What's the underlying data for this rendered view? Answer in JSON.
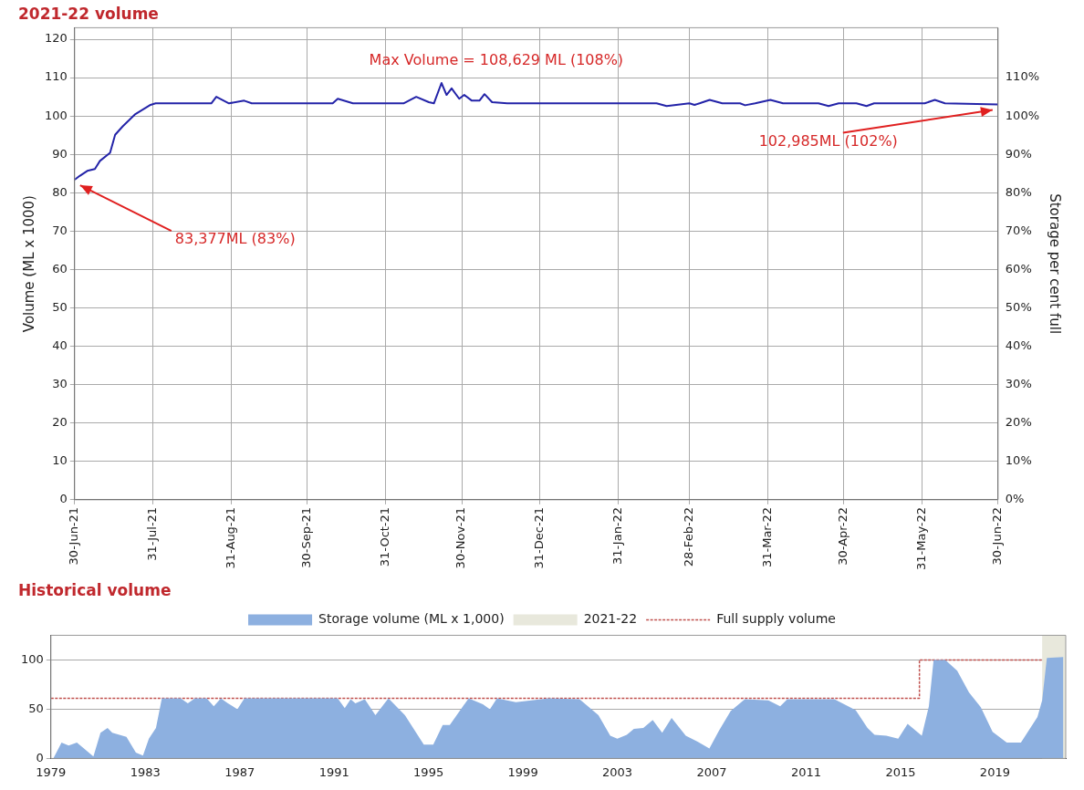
{
  "chart_data": [
    {
      "type": "line",
      "title": "2021-22 volume",
      "ylabel": "Volume (ML x 1000)",
      "y2label": "Storage per cent full",
      "grid": true,
      "legend": false,
      "marker": "none",
      "x": [
        "2021-06-30",
        "2021-07-02",
        "2021-07-05",
        "2021-07-08",
        "2021-07-10",
        "2021-07-14",
        "2021-07-16",
        "2021-07-19",
        "2021-07-24",
        "2021-07-30",
        "2021-08-01",
        "2021-08-23",
        "2021-08-25",
        "2021-08-30",
        "2021-09-05",
        "2021-09-08",
        "2021-10-10",
        "2021-10-12",
        "2021-10-18",
        "2021-11-07",
        "2021-11-12",
        "2021-11-17",
        "2021-11-19",
        "2021-11-22",
        "2021-11-24",
        "2021-11-26",
        "2021-11-29",
        "2021-12-01",
        "2021-12-04",
        "2021-12-07",
        "2021-12-09",
        "2021-12-12",
        "2021-12-18",
        "2022-02-15",
        "2022-02-19",
        "2022-02-28",
        "2022-03-02",
        "2022-03-04",
        "2022-03-08",
        "2022-03-13",
        "2022-03-20",
        "2022-03-22",
        "2022-03-26",
        "2022-04-01",
        "2022-04-06",
        "2022-04-20",
        "2022-04-24",
        "2022-04-28",
        "2022-05-05",
        "2022-05-09",
        "2022-05-12",
        "2022-06-01",
        "2022-06-05",
        "2022-06-09",
        "2022-06-30"
      ],
      "series": [
        {
          "color": "#2323a8",
          "values": [
            83.4,
            84.4,
            85.7,
            86.2,
            88.3,
            90.4,
            95.1,
            97.3,
            100.5,
            102.9,
            103.3,
            103.3,
            105,
            103.3,
            104,
            103.3,
            103.3,
            104.5,
            103.3,
            103.3,
            105,
            103.6,
            103.3,
            108.6,
            105.5,
            107.2,
            104.5,
            105.5,
            104,
            104,
            105.7,
            103.6,
            103.3,
            103.3,
            102.6,
            103.3,
            102.9,
            103.3,
            104.2,
            103.3,
            103.3,
            102.8,
            103.3,
            104.2,
            103.3,
            103.3,
            102.6,
            103.3,
            103.3,
            102.6,
            103.3,
            103.3,
            104.2,
            103.3,
            103
          ]
        }
      ],
      "xlim": [
        "2021-06-30",
        "2022-06-30"
      ],
      "xticks": [
        {
          "value": "2021-06-30",
          "label": "30-Jun-21"
        },
        {
          "value": "2021-07-31",
          "label": "31-Jul-21"
        },
        {
          "value": "2021-08-31",
          "label": "31-Aug-21"
        },
        {
          "value": "2021-09-30",
          "label": "30-Sep-21"
        },
        {
          "value": "2021-10-31",
          "label": "31-Oct-21"
        },
        {
          "value": "2021-11-30",
          "label": "30-Nov-21"
        },
        {
          "value": "2021-12-31",
          "label": "31-Dec-21"
        },
        {
          "value": "2022-01-31",
          "label": "31-Jan-22"
        },
        {
          "value": "2022-02-28",
          "label": "28-Feb-22"
        },
        {
          "value": "2022-03-31",
          "label": "31-Mar-22"
        },
        {
          "value": "2022-04-30",
          "label": "30-Apr-22"
        },
        {
          "value": "2022-05-31",
          "label": "31-May-22"
        },
        {
          "value": "2022-06-30",
          "label": "30-Jun-22"
        }
      ],
      "ylim": [
        0,
        123
      ],
      "yticks": [
        0,
        10,
        20,
        30,
        40,
        50,
        60,
        70,
        80,
        90,
        100,
        110,
        120
      ],
      "y2lim": [
        0,
        123
      ],
      "y2ticks": [
        {
          "value": 0,
          "label": "0%"
        },
        {
          "value": 10,
          "label": "10%"
        },
        {
          "value": 20,
          "label": "20%"
        },
        {
          "value": 30,
          "label": "30%"
        },
        {
          "value": 40,
          "label": "40%"
        },
        {
          "value": 50,
          "label": "50%"
        },
        {
          "value": 60,
          "label": "60%"
        },
        {
          "value": 70,
          "label": "70%"
        },
        {
          "value": 80,
          "label": "80%"
        },
        {
          "value": 90,
          "label": "90%"
        },
        {
          "value": 100,
          "label": "100%"
        },
        {
          "value": 110,
          "label": "110%"
        }
      ],
      "annotations": [
        {
          "text": "Max Volume = 108,629 ML (108%)",
          "x": "2021-11-22",
          "y": 108.629
        },
        {
          "text": "83,377ML (83%)",
          "x": "2021-06-30",
          "y": 83.377
        },
        {
          "text": "102,985ML (102%)",
          "x": "2022-06-30",
          "y": 102.985
        }
      ]
    },
    {
      "type": "area",
      "title": "Historical volume",
      "grid": "y",
      "legend": "top",
      "marker": "none",
      "x": [
        1979.1,
        1979.45,
        1979.75,
        1980.1,
        1980.4,
        1980.8,
        1981.1,
        1981.4,
        1981.6,
        1982.2,
        1982.6,
        1982.9,
        1983.15,
        1983.45,
        1983.7,
        1984.5,
        1984.8,
        1985.1,
        1985.6,
        1985.9,
        1986.2,
        1986.5,
        1986.9,
        1987.2,
        1991.15,
        1991.45,
        1991.7,
        1991.9,
        1992.3,
        1992.75,
        1993.3,
        1994,
        1994.8,
        1995.2,
        1995.6,
        1995.9,
        1996.7,
        1997.3,
        1997.6,
        1997.9,
        1998.7,
        2000.1,
        2001.4,
        2002.2,
        2002.7,
        2003,
        2003.4,
        2003.7,
        2004.1,
        2004.5,
        2004.9,
        2005.3,
        2005.9,
        2006.4,
        2006.9,
        2007.3,
        2007.8,
        2008.4,
        2009.4,
        2009.9,
        2010.2,
        2012.2,
        2013.1,
        2013.6,
        2013.9,
        2014.4,
        2014.9,
        2015.3,
        2015.9,
        2016.2,
        2016.4,
        2016.9,
        2017.4,
        2017.9,
        2018.4,
        2018.9,
        2019.5,
        2020.1,
        2020.8,
        2021,
        2021.2,
        2021.9
      ],
      "series": [
        {
          "name": "Storage volume (ML x 1,000)",
          "color": "#8db0e0",
          "values": [
            0,
            16,
            13,
            16,
            10,
            2,
            26,
            31,
            26,
            22,
            6,
            3,
            20,
            31,
            61,
            61,
            56,
            61,
            61,
            53,
            61,
            56,
            50,
            61,
            61,
            51,
            60,
            56,
            60,
            44,
            61,
            44,
            14,
            14,
            34,
            34,
            61,
            55,
            50,
            61,
            57,
            61,
            60,
            44,
            23,
            20,
            24,
            30,
            31,
            39,
            26,
            41,
            23,
            17,
            10,
            28,
            48,
            60,
            59,
            53,
            60,
            60,
            49,
            31,
            24,
            23,
            20,
            35,
            23,
            53,
            100,
            100,
            89,
            67,
            52,
            27,
            16,
            16,
            42,
            59,
            102,
            103
          ]
        },
        {
          "name": "Full supply volume",
          "type": "step",
          "color": "#c0504d",
          "line_style": "dashed",
          "x": [
            1979,
            2015.8,
            2021
          ],
          "values": [
            61,
            100,
            100
          ]
        }
      ],
      "bands": [
        {
          "axis": "x",
          "from": 2021,
          "to": 2022,
          "label": "2021-22",
          "color": "#e8e8dc"
        }
      ],
      "xlim": [
        1979,
        2022
      ],
      "xticks": [
        1979,
        1983,
        1987,
        1991,
        1995,
        1999,
        2003,
        2007,
        2011,
        2015,
        2019
      ],
      "ylim": [
        0,
        125
      ],
      "yticks": [
        0,
        50,
        100
      ]
    }
  ]
}
